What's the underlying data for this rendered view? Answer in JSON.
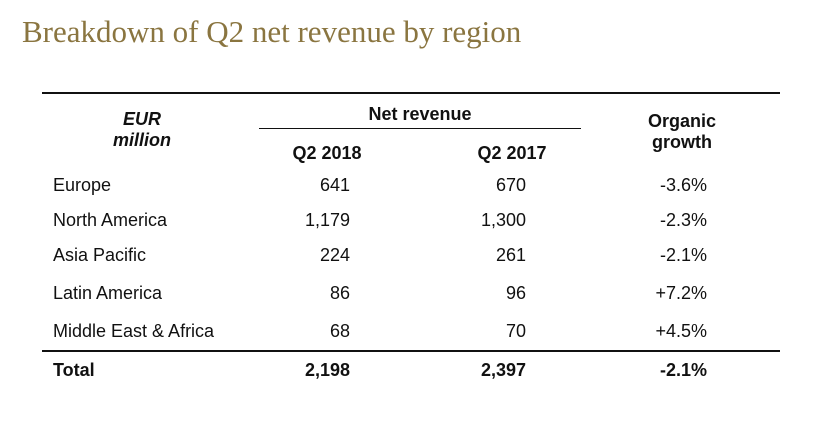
{
  "title": "Breakdown of Q2 net revenue by region",
  "table": {
    "header": {
      "unit_line1": "EUR",
      "unit_line2": "million",
      "group": "Net revenue",
      "col1": "Q2 2018",
      "col2": "Q2 2017",
      "growth_line1": "Organic",
      "growth_line2": "growth"
    },
    "rows": [
      {
        "region": "Europe",
        "q2_2018": "641",
        "q2_2017": "670",
        "growth": "-3.6%"
      },
      {
        "region": "North America",
        "q2_2018": "1,179",
        "q2_2017": "1,300",
        "growth": "-2.3%"
      },
      {
        "region": "Asia Pacific",
        "q2_2018": "224",
        "q2_2017": "261",
        "growth": "-2.1%"
      },
      {
        "region": "Latin America",
        "q2_2018": "86",
        "q2_2017": "96",
        "growth": "+7.2%"
      },
      {
        "region": "Middle East & Africa",
        "q2_2018": "68",
        "q2_2017": "70",
        "growth": "+4.5%"
      }
    ],
    "total": {
      "label": "Total",
      "q2_2018": "2,198",
      "q2_2017": "2,397",
      "growth": "-2.1%"
    }
  },
  "colors": {
    "title": "#8a7540",
    "text": "#111111",
    "rule": "#111111"
  }
}
